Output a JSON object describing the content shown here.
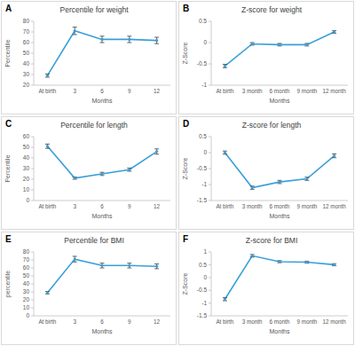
{
  "chart_data": [
    {
      "type": "line",
      "panel": "A",
      "title": "Percentile for weight",
      "xlabel": "Months",
      "ylabel": "Percentile",
      "categories": [
        "At birth",
        "3",
        "6",
        "9",
        "12"
      ],
      "series": [
        {
          "color": "#3a9fd8",
          "marker": "circle",
          "values": [
            29,
            71,
            63,
            63,
            62
          ],
          "errors": [
            1.5,
            3.5,
            3,
            3,
            3
          ]
        }
      ],
      "ylim": [
        20,
        80
      ],
      "yticks": [
        20,
        30,
        40,
        50,
        60,
        70,
        80
      ],
      "grid": false
    },
    {
      "type": "line",
      "panel": "B",
      "title": "Z-score for weight",
      "xlabel": "Months",
      "ylabel": "Z-Score",
      "categories": [
        "At birth",
        "3 month",
        "6 month",
        "9 month",
        "12 month"
      ],
      "series": [
        {
          "color": "#3a9fd8",
          "marker": "circle",
          "values": [
            -0.55,
            -0.03,
            -0.05,
            -0.05,
            0.25
          ],
          "errors": [
            0.04,
            0.03,
            0.03,
            0.03,
            0.03
          ]
        }
      ],
      "ylim": [
        -1,
        0.5
      ],
      "yticks": [
        -1,
        -0.5,
        0,
        0.5
      ],
      "grid": false
    },
    {
      "type": "line",
      "panel": "C",
      "title": "Percentile for length",
      "xlabel": "Months",
      "ylabel": "Percentile",
      "categories": [
        "At birth",
        "3",
        "6",
        "9",
        "12"
      ],
      "series": [
        {
          "color": "#3a9fd8",
          "marker": "circle",
          "values": [
            51,
            21,
            25,
            29,
            46
          ],
          "errors": [
            2,
            1,
            1.5,
            1.5,
            2.5
          ]
        }
      ],
      "ylim": [
        0,
        60
      ],
      "yticks": [
        0,
        10,
        20,
        30,
        40,
        50,
        60
      ],
      "grid": false
    },
    {
      "type": "line",
      "panel": "D",
      "title": "Z-score for length",
      "xlabel": "Months",
      "ylabel": "Z-Score",
      "categories": [
        "At birth",
        "3 month",
        "6 month",
        "9 month",
        "12 month"
      ],
      "series": [
        {
          "color": "#3a9fd8",
          "marker": "circle",
          "values": [
            0,
            -1.1,
            -0.92,
            -0.82,
            -0.1
          ],
          "errors": [
            0.05,
            0.05,
            0.05,
            0.05,
            0.06
          ]
        }
      ],
      "ylim": [
        -1.5,
        0.5
      ],
      "yticks": [
        -1.5,
        -1,
        -0.5,
        0,
        0.5
      ],
      "grid": false
    },
    {
      "type": "line",
      "panel": "E",
      "title": "Percentile for BMI",
      "xlabel": "Months",
      "ylabel": "percentile",
      "categories": [
        "At birth",
        "3",
        "6",
        "9",
        "12"
      ],
      "series": [
        {
          "color": "#3a9fd8",
          "marker": "circle",
          "values": [
            29,
            71,
            63,
            63,
            62
          ],
          "errors": [
            1.5,
            3.5,
            3,
            3,
            3
          ]
        }
      ],
      "ylim": [
        0,
        80
      ],
      "yticks": [
        0,
        10,
        20,
        30,
        40,
        50,
        60,
        70,
        80
      ],
      "grid": false
    },
    {
      "type": "line",
      "panel": "F",
      "title": "Z-score for BMI",
      "xlabel": "Months",
      "ylabel": "Z-Score",
      "categories": [
        "At birth",
        "3 month",
        "6 month",
        "9 month",
        "12 month"
      ],
      "series": [
        {
          "color": "#3a9fd8",
          "marker": "circle",
          "values": [
            -0.85,
            0.85,
            0.62,
            0.6,
            0.5
          ],
          "errors": [
            0.06,
            0.05,
            0.04,
            0.04,
            0.04
          ]
        }
      ],
      "ylim": [
        -1.5,
        1
      ],
      "yticks": [
        -1.5,
        -1,
        -0.5,
        0,
        0.5,
        1
      ],
      "grid": false
    }
  ]
}
